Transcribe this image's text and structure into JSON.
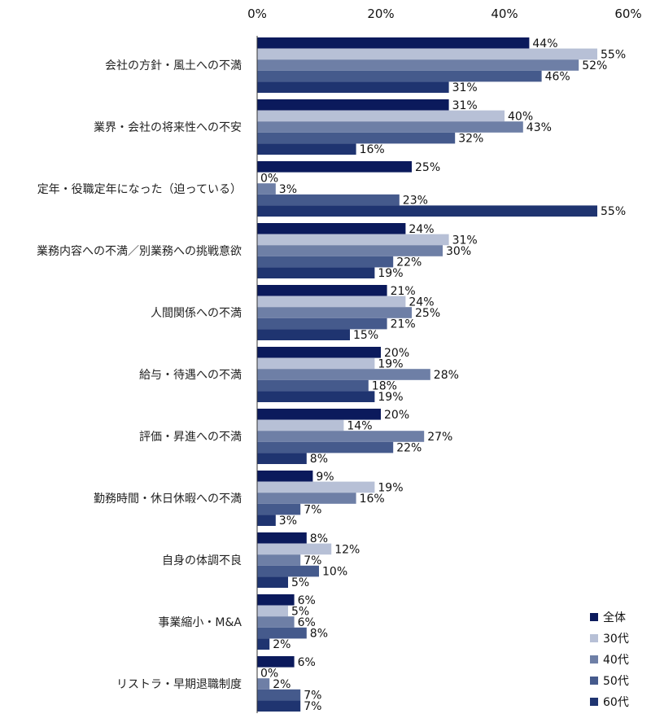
{
  "chart_data": {
    "type": "bar",
    "orientation": "horizontal",
    "categories": [
      "会社の方針・風土への不満",
      "業界・会社の将来性への不安",
      "定年・役職定年になった（迫っている）",
      "業務内容への不満／別業務への挑戦意欲",
      "人間関係への不満",
      "給与・待遇への不満",
      "評価・昇進への不満",
      "勤務時間・休日休暇への不満",
      "自身の体調不良",
      "事業縮小・M&A",
      "リストラ・早期退職制度"
    ],
    "series": [
      {
        "name": "全体",
        "color": "#0b1a5c",
        "values": [
          44,
          31,
          25,
          24,
          21,
          20,
          20,
          9,
          8,
          6,
          6
        ]
      },
      {
        "name": "30代",
        "color": "#b7c0d6",
        "values": [
          55,
          40,
          0,
          31,
          24,
          19,
          14,
          19,
          12,
          5,
          0
        ]
      },
      {
        "name": "40代",
        "color": "#6e7fa6",
        "values": [
          52,
          43,
          3,
          30,
          25,
          28,
          27,
          16,
          7,
          6,
          2
        ]
      },
      {
        "name": "50代",
        "color": "#455a8c",
        "values": [
          46,
          32,
          23,
          22,
          21,
          18,
          22,
          7,
          10,
          8,
          7
        ]
      },
      {
        "name": "60代",
        "color": "#1f3470",
        "values": [
          31,
          16,
          55,
          19,
          15,
          19,
          8,
          3,
          5,
          2,
          7
        ]
      }
    ],
    "value_suffix": "%",
    "xlim": [
      0,
      60
    ],
    "xticks": [
      "0%",
      "20%",
      "40%",
      "60%"
    ],
    "xtick_values": [
      0,
      20,
      40,
      60
    ],
    "axis_position": "top",
    "grid": false,
    "legend_position": "bottom-right"
  }
}
